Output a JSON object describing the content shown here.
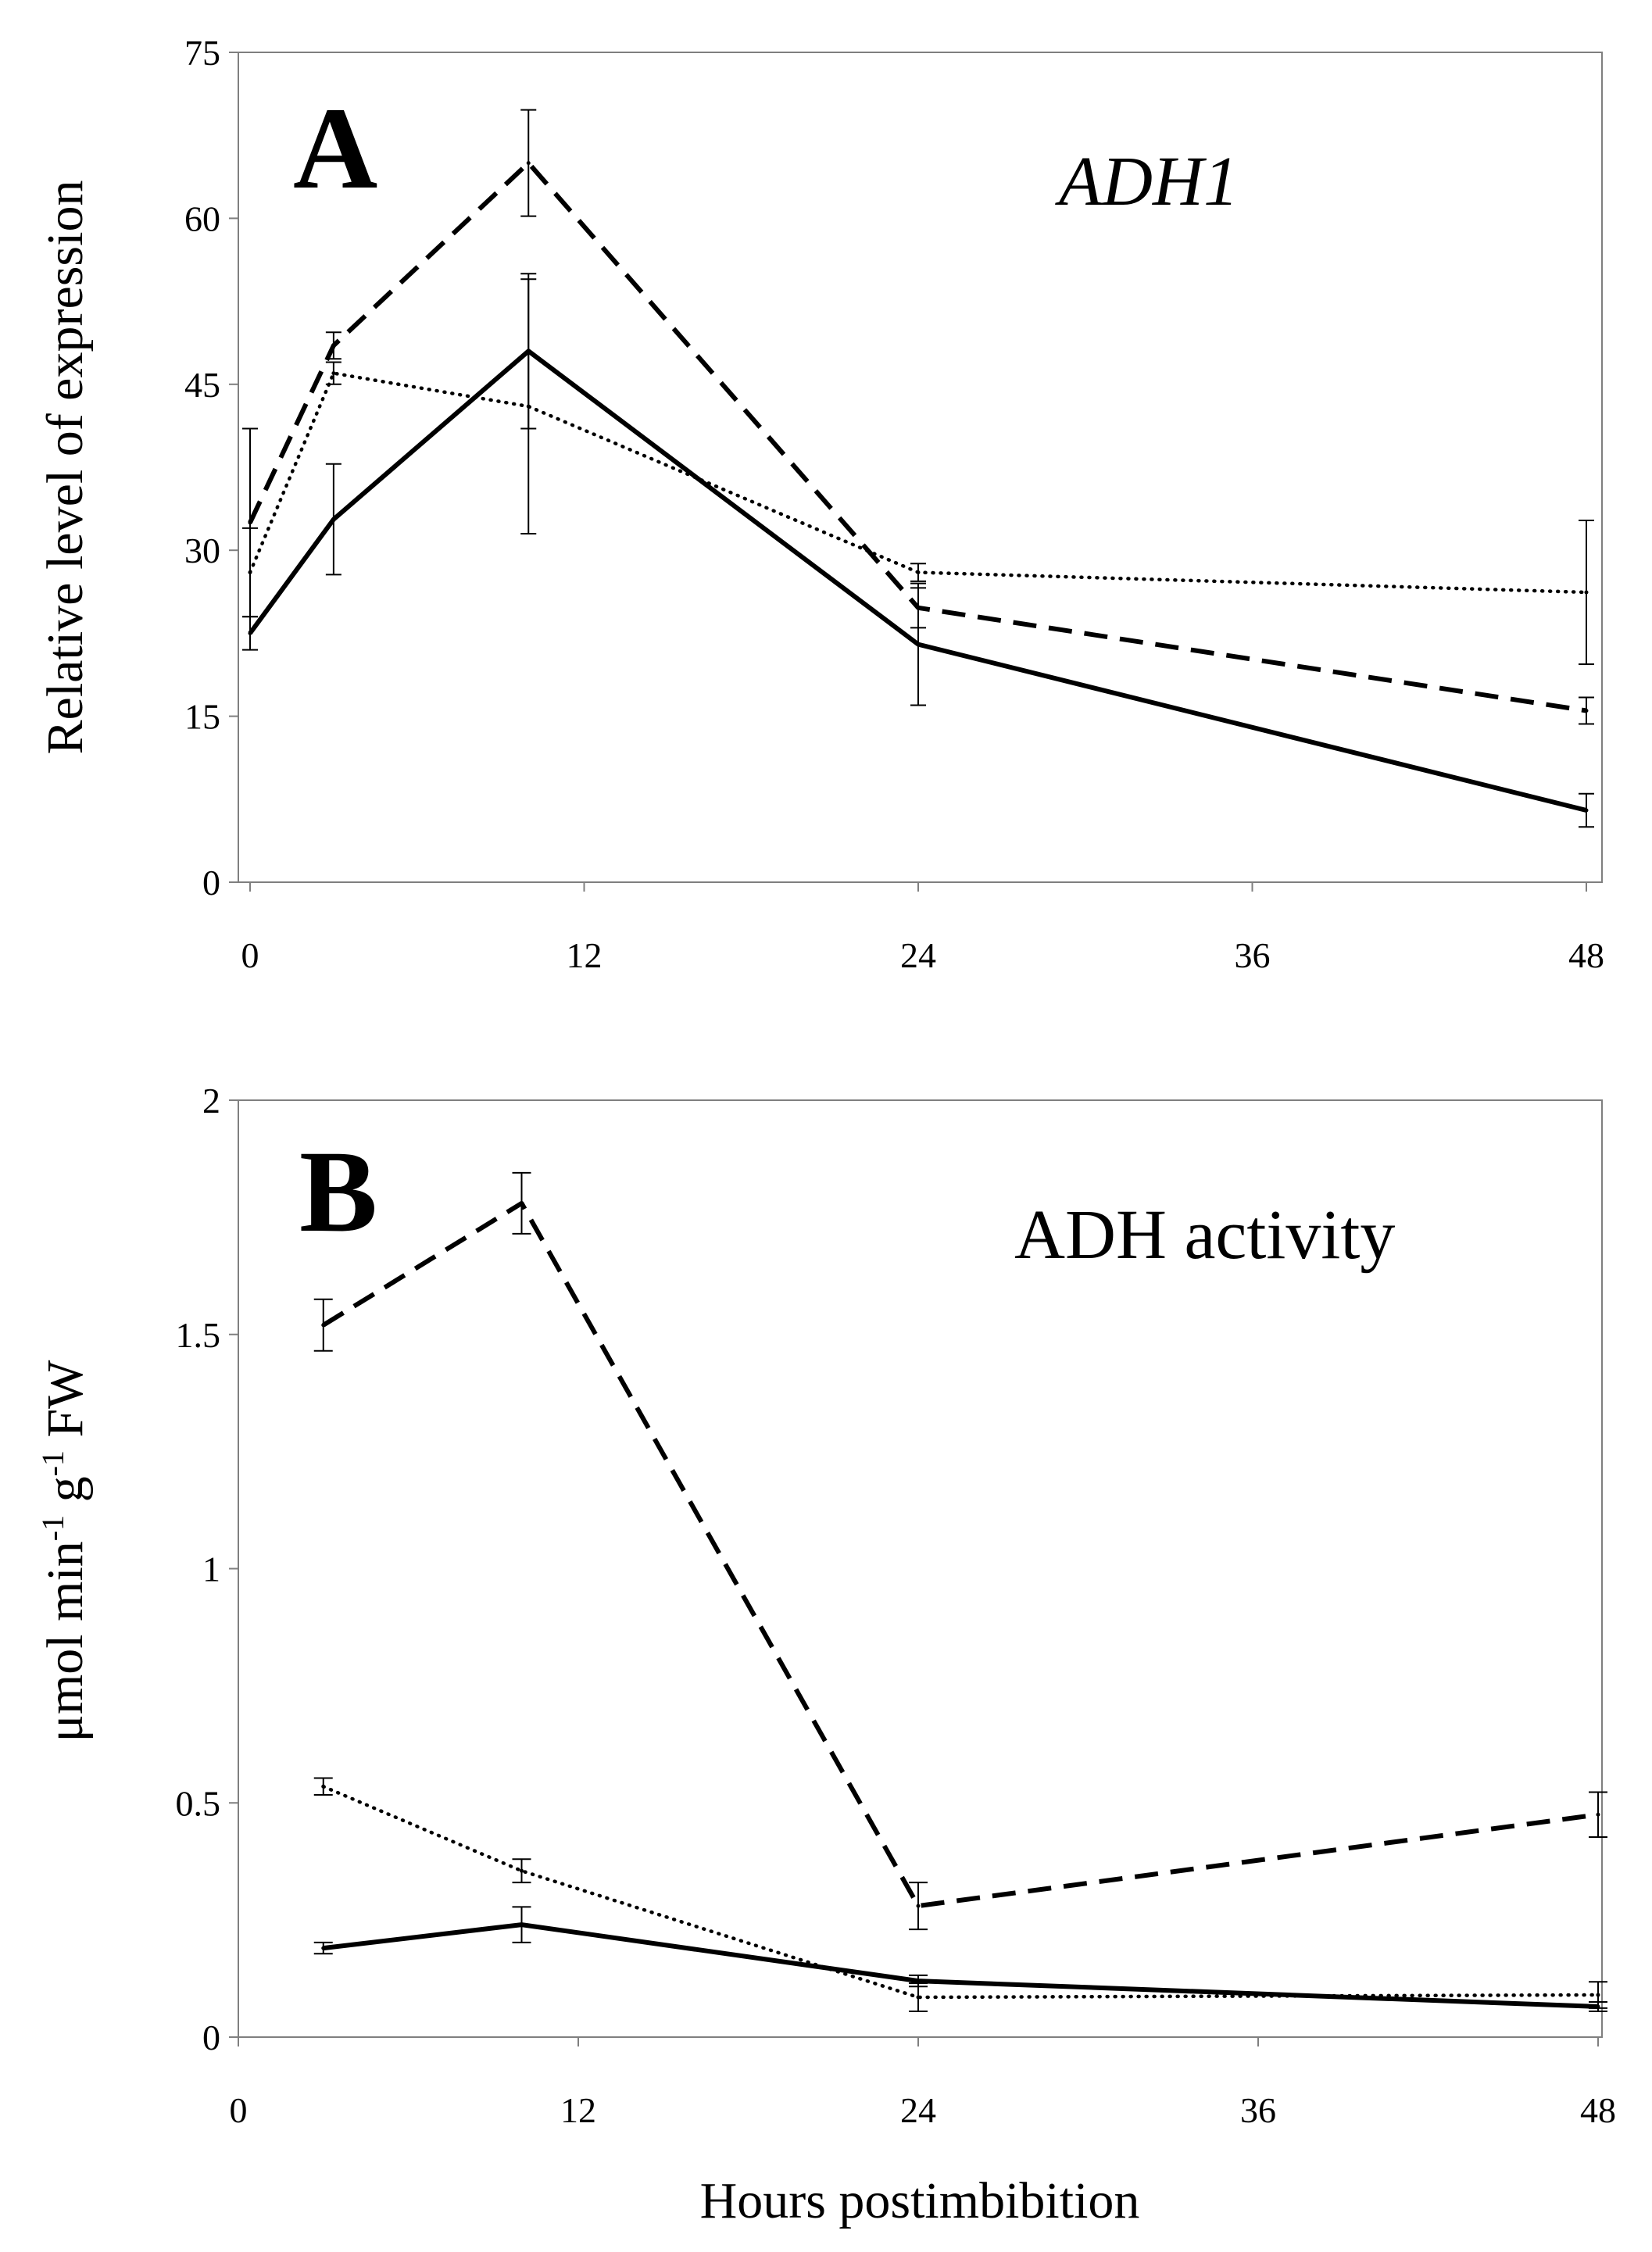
{
  "colors": {
    "background": "#ffffff",
    "frame": "#7f7f7f",
    "series": "#000000"
  },
  "chart_data": [
    {
      "type": "line",
      "panel_letter": "A",
      "title": "ADH1",
      "title_style": "italic",
      "xlabel": "",
      "ylabel": "Relative level of expression",
      "xlim": [
        0,
        48
      ],
      "ylim": [
        0,
        75
      ],
      "xticks": [
        0,
        12,
        24,
        36,
        48
      ],
      "yticks": [
        0,
        15,
        30,
        45,
        60,
        75
      ],
      "grid": false,
      "series": [
        {
          "name": "solid",
          "style": "solid",
          "x": [
            0,
            3,
            10,
            24,
            48
          ],
          "y": [
            22.5,
            32.8,
            48,
            21.5,
            6.5
          ],
          "err": [
            1.5,
            5,
            7,
            5.5,
            1.5
          ]
        },
        {
          "name": "dashed",
          "style": "dashed",
          "x": [
            0,
            3,
            10,
            24,
            48
          ],
          "y": [
            32.5,
            48.5,
            65,
            24.8,
            15.5
          ],
          "err": [
            8.5,
            1.2,
            4.8,
            1.8,
            1.2
          ]
        },
        {
          "name": "dotted",
          "style": "dotted",
          "x": [
            0,
            3,
            10,
            24,
            48
          ],
          "y": [
            28,
            46,
            43,
            28,
            26.2
          ],
          "err": [
            4,
            1,
            11.5,
            0.8,
            6.5
          ]
        }
      ]
    },
    {
      "type": "line",
      "panel_letter": "B",
      "title": "ADH activity",
      "title_style": "normal",
      "xlabel": "Hours postimbibition",
      "ylabel_parts": [
        "μmol min",
        "-1",
        " g",
        "-1",
        " FW"
      ],
      "xlim": [
        0,
        48
      ],
      "ylim": [
        0,
        2
      ],
      "xticks": [
        0,
        12,
        24,
        36,
        48
      ],
      "yticks": [
        0,
        0.5,
        1,
        1.5,
        2
      ],
      "ytick_labels": [
        "0",
        "0.5",
        "1",
        "1.5",
        "2"
      ],
      "grid": false,
      "series": [
        {
          "name": "solid",
          "style": "solid",
          "x": [
            3,
            10,
            24,
            48
          ],
          "y": [
            0.19,
            0.24,
            0.12,
            0.065
          ],
          "err": [
            0.012,
            0.038,
            0.012,
            0.01
          ]
        },
        {
          "name": "dashed",
          "style": "dashed",
          "x": [
            3,
            10,
            24,
            48
          ],
          "y": [
            1.52,
            1.78,
            0.28,
            0.475
          ],
          "err": [
            0.055,
            0.065,
            0.05,
            0.048
          ]
        },
        {
          "name": "dotted",
          "style": "dotted",
          "x": [
            3,
            10,
            24,
            48
          ],
          "y": [
            0.535,
            0.355,
            0.085,
            0.09
          ],
          "err": [
            0.018,
            0.025,
            0.03,
            0.028
          ]
        }
      ]
    }
  ]
}
